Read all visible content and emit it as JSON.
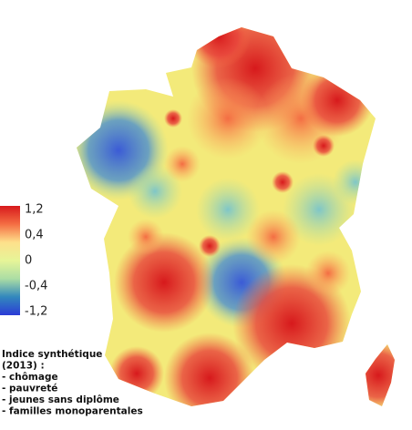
{
  "colorbar": {
    "colors": [
      "#d7191c",
      "#f46d43",
      "#fee08b",
      "#e6f598",
      "#abdda4",
      "#3288bd",
      "#2b3bd6"
    ],
    "ticks": [
      {
        "value": 1.2,
        "label": "1,2"
      },
      {
        "value": 0.4,
        "label": "0,4"
      },
      0,
      {
        "value": -0.4,
        "label": "-0,4"
      },
      {
        "value": -1.2,
        "label": "-1,2"
      }
    ]
  },
  "legend": {
    "title_lines": [
      "Indice synthétique",
      "(2013) :"
    ],
    "items": [
      "- chômage",
      "- pauvreté",
      "- jeunes sans diplôme",
      "- familles monoparentales"
    ]
  }
}
